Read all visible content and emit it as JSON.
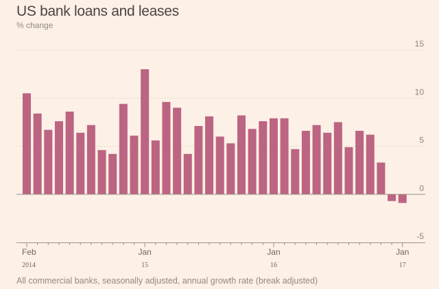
{
  "chart_data": {
    "type": "bar",
    "title": "US bank loans and leases",
    "subtitle": "% change",
    "xlabel": "",
    "ylabel": "% change",
    "ylim": [
      -5,
      15
    ],
    "yticks": [
      15,
      10,
      5,
      0,
      -5
    ],
    "grid": true,
    "footnote": "All commercial banks, seasonally adjusted, annual growth rate (break adjusted)",
    "color": "#bb6582",
    "categories": [
      "Feb 2014",
      "Mar 2014",
      "Apr 2014",
      "May 2014",
      "Jun 2014",
      "Jul 2014",
      "Aug 2014",
      "Sep 2014",
      "Oct 2014",
      "Nov 2014",
      "Dec 2014",
      "Jan 2015",
      "Feb 2015",
      "Mar 2015",
      "Apr 2015",
      "May 2015",
      "Jun 2015",
      "Jul 2015",
      "Aug 2015",
      "Sep 2015",
      "Oct 2015",
      "Nov 2015",
      "Dec 2015",
      "Jan 2016",
      "Feb 2016",
      "Mar 2016",
      "Apr 2016",
      "May 2016",
      "Jun 2016",
      "Jul 2016",
      "Aug 2016",
      "Sep 2016",
      "Oct 2016",
      "Nov 2016",
      "Dec 2016",
      "Jan 2017"
    ],
    "values": [
      10.5,
      8.4,
      6.7,
      7.6,
      8.6,
      6.4,
      7.2,
      4.6,
      4.2,
      9.4,
      6.1,
      13.0,
      5.6,
      9.6,
      9.0,
      4.2,
      7.1,
      8.1,
      6.0,
      5.3,
      8.2,
      6.8,
      7.6,
      7.9,
      7.9,
      4.7,
      6.6,
      7.2,
      6.4,
      7.5,
      4.9,
      6.6,
      6.2,
      3.3,
      -0.7,
      -0.9
    ],
    "xtick_labels": [
      {
        "index": 0,
        "month": "Feb",
        "year": "2014"
      },
      {
        "index": 11,
        "month": "Jan",
        "year": "15"
      },
      {
        "index": 23,
        "month": "Jan",
        "year": "16"
      },
      {
        "index": 35,
        "month": "Jan",
        "year": "17"
      }
    ]
  }
}
